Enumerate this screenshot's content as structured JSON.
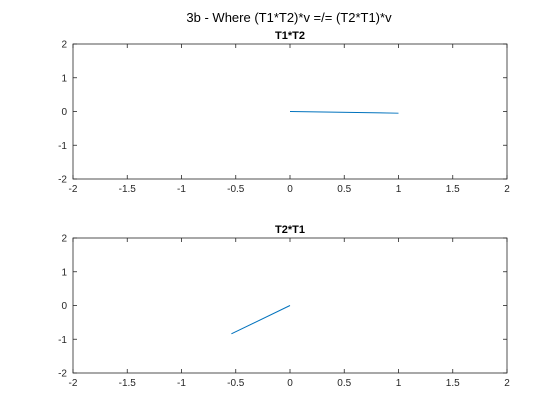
{
  "title": "3b - Where (T1*T2)*v =/= (T2*T1)*v",
  "chart_data": [
    {
      "type": "line",
      "title": "T1*T2",
      "xlim": [
        -2,
        2
      ],
      "ylim": [
        -2,
        2
      ],
      "xticks": [
        -2,
        -1.5,
        -1,
        -0.5,
        0,
        0.5,
        1,
        1.5,
        2
      ],
      "yticks": [
        -2,
        -1,
        0,
        1,
        2
      ],
      "xtick_labels": [
        "-2",
        "-1.5",
        "-1",
        "-0.5",
        "0",
        "0.5",
        "1",
        "1.5",
        "2"
      ],
      "ytick_labels": [
        "-2",
        "-1",
        "0",
        "1",
        "2"
      ],
      "grid": false,
      "series": [
        {
          "x": [
            0,
            1
          ],
          "y": [
            0,
            -0.05
          ],
          "color": "#0072bd"
        }
      ]
    },
    {
      "type": "line",
      "title": "T2*T1",
      "xlim": [
        -2,
        2
      ],
      "ylim": [
        -2,
        2
      ],
      "xticks": [
        -2,
        -1.5,
        -1,
        -0.5,
        0,
        0.5,
        1,
        1.5,
        2
      ],
      "yticks": [
        -2,
        -1,
        0,
        1,
        2
      ],
      "xtick_labels": [
        "-2",
        "-1.5",
        "-1",
        "-0.5",
        "0",
        "0.5",
        "1",
        "1.5",
        "2"
      ],
      "ytick_labels": [
        "-2",
        "-1",
        "0",
        "1",
        "2"
      ],
      "grid": false,
      "series": [
        {
          "x": [
            0,
            -0.54
          ],
          "y": [
            0,
            -0.84
          ],
          "color": "#0072bd"
        }
      ]
    }
  ]
}
